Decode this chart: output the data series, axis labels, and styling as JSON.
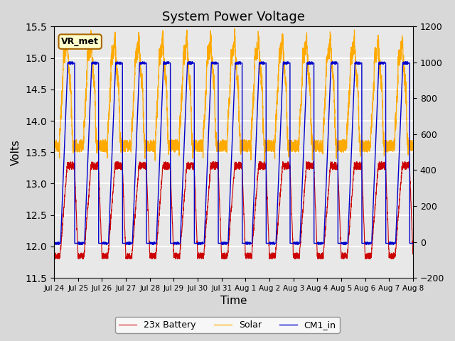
{
  "title": "System Power Voltage",
  "xlabel": "Time",
  "ylabel": "Volts",
  "ylim_left": [
    11.5,
    15.5
  ],
  "ylim_right": [
    -200,
    1200
  ],
  "background_color": "#d8d8d8",
  "plot_bg_color": "#e8e8e8",
  "grid_color": "white",
  "line_battery_color": "#cc0000",
  "line_solar_color": "#ffaa00",
  "line_cm1_color": "#0000cc",
  "legend_labels": [
    "23x Battery",
    "Solar",
    "CM1_in"
  ],
  "xtick_labels": [
    "Jul 24",
    "Jul 25",
    "Jul 26",
    "Jul 27",
    "Jul 28",
    "Jul 29",
    "Jul 30",
    "Jul 31",
    "Aug 1",
    "Aug 2",
    "Aug 3",
    "Aug 4",
    "Aug 5",
    "Aug 6",
    "Aug 7",
    "Aug 8"
  ],
  "annotation_text": "VR_met",
  "n_cycles": 15,
  "points_per_cycle": 200,
  "battery_base": 11.85,
  "battery_peak": 13.3,
  "cm1_base": 12.05,
  "cm1_peak": 14.92,
  "solar_base_night": 13.5,
  "solar_peak": 15.2,
  "right_axis_ticks": [
    -200,
    0,
    200,
    400,
    600,
    800,
    1000,
    1200
  ]
}
